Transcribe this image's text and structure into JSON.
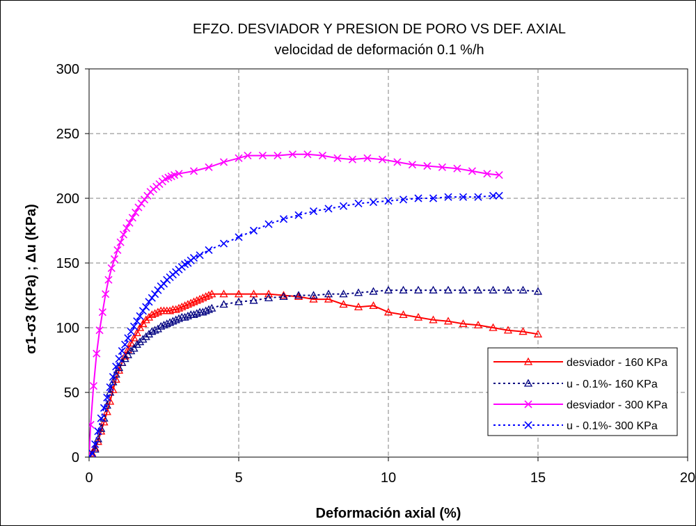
{
  "chart_data": {
    "type": "line",
    "title": "EFZO. DESVIADOR Y PRESION DE PORO VS DEF. AXIAL",
    "subtitle": "velocidad de deformación 0.1 %/h",
    "xlabel": "Deformación axial (%)",
    "ylabel": "σ1-σ3 (KPa) ; Δu (KPa)",
    "xlim": [
      0,
      20
    ],
    "ylim": [
      0,
      300
    ],
    "xticks": [
      0,
      5,
      10,
      15,
      20
    ],
    "yticks": [
      0,
      50,
      100,
      150,
      200,
      250,
      300
    ],
    "grid": true,
    "legend_position": "bottom-right",
    "series": [
      {
        "name": "desviador - 160 KPa",
        "color": "#ff0000",
        "marker": "triangle",
        "line": "solid",
        "points": [
          [
            0,
            0
          ],
          [
            0.1,
            3
          ],
          [
            0.2,
            7
          ],
          [
            0.3,
            12
          ],
          [
            0.4,
            20
          ],
          [
            0.5,
            27
          ],
          [
            0.6,
            35
          ],
          [
            0.7,
            43
          ],
          [
            0.8,
            52
          ],
          [
            0.9,
            60
          ],
          [
            1.0,
            67
          ],
          [
            1.1,
            73
          ],
          [
            1.2,
            78
          ],
          [
            1.3,
            83
          ],
          [
            1.4,
            88
          ],
          [
            1.5,
            92
          ],
          [
            1.6,
            96
          ],
          [
            1.7,
            100
          ],
          [
            1.8,
            103
          ],
          [
            1.9,
            106
          ],
          [
            2.0,
            108
          ],
          [
            2.1,
            110
          ],
          [
            2.2,
            111
          ],
          [
            2.3,
            112
          ],
          [
            2.4,
            113
          ],
          [
            2.5,
            113
          ],
          [
            2.6,
            113
          ],
          [
            2.7,
            113
          ],
          [
            2.8,
            114
          ],
          [
            2.9,
            114
          ],
          [
            3.0,
            115
          ],
          [
            3.1,
            116
          ],
          [
            3.2,
            117
          ],
          [
            3.3,
            118
          ],
          [
            3.4,
            119
          ],
          [
            3.5,
            120
          ],
          [
            3.6,
            121
          ],
          [
            3.7,
            122
          ],
          [
            3.8,
            123
          ],
          [
            3.9,
            124
          ],
          [
            4.0,
            125
          ],
          [
            4.1,
            126
          ],
          [
            4.5,
            126
          ],
          [
            5.0,
            126
          ],
          [
            5.5,
            126
          ],
          [
            6.0,
            126
          ],
          [
            6.5,
            125
          ],
          [
            7.0,
            124
          ],
          [
            7.5,
            122
          ],
          [
            8.0,
            122
          ],
          [
            8.5,
            118
          ],
          [
            9.0,
            116
          ],
          [
            9.5,
            117
          ],
          [
            10.0,
            112
          ],
          [
            10.5,
            110
          ],
          [
            11.0,
            108
          ],
          [
            11.5,
            106
          ],
          [
            12.0,
            105
          ],
          [
            12.5,
            103
          ],
          [
            13.0,
            102
          ],
          [
            13.5,
            100
          ],
          [
            14.0,
            98
          ],
          [
            14.5,
            97
          ],
          [
            15.0,
            95
          ]
        ]
      },
      {
        "name": "u - 0.1%- 160 KPa",
        "color": "#000080",
        "marker": "triangle-open",
        "line": "dotted",
        "points": [
          [
            0,
            0
          ],
          [
            0.1,
            2
          ],
          [
            0.2,
            6
          ],
          [
            0.3,
            14
          ],
          [
            0.4,
            22
          ],
          [
            0.5,
            30
          ],
          [
            0.6,
            40
          ],
          [
            0.7,
            50
          ],
          [
            0.8,
            58
          ],
          [
            0.9,
            64
          ],
          [
            1.0,
            69
          ],
          [
            1.1,
            73
          ],
          [
            1.2,
            76
          ],
          [
            1.3,
            79
          ],
          [
            1.4,
            82
          ],
          [
            1.5,
            84
          ],
          [
            1.6,
            87
          ],
          [
            1.7,
            89
          ],
          [
            1.8,
            91
          ],
          [
            1.9,
            93
          ],
          [
            2.0,
            95
          ],
          [
            2.1,
            97
          ],
          [
            2.2,
            98
          ],
          [
            2.3,
            99
          ],
          [
            2.4,
            101
          ],
          [
            2.5,
            102
          ],
          [
            2.6,
            103
          ],
          [
            2.7,
            104
          ],
          [
            2.8,
            105
          ],
          [
            2.9,
            106
          ],
          [
            3.0,
            107
          ],
          [
            3.1,
            108
          ],
          [
            3.2,
            108
          ],
          [
            3.3,
            109
          ],
          [
            3.4,
            110
          ],
          [
            3.5,
            110
          ],
          [
            3.6,
            111
          ],
          [
            3.7,
            112
          ],
          [
            3.8,
            112
          ],
          [
            3.9,
            113
          ],
          [
            4.0,
            114
          ],
          [
            4.1,
            115
          ],
          [
            4.5,
            118
          ],
          [
            5.0,
            120
          ],
          [
            5.5,
            121
          ],
          [
            6.0,
            123
          ],
          [
            6.5,
            124
          ],
          [
            7.0,
            125
          ],
          [
            7.5,
            125
          ],
          [
            8.0,
            126
          ],
          [
            8.5,
            126
          ],
          [
            9.0,
            127
          ],
          [
            9.5,
            128
          ],
          [
            10.0,
            129
          ],
          [
            10.5,
            129
          ],
          [
            11.0,
            129
          ],
          [
            11.5,
            129
          ],
          [
            12.0,
            129
          ],
          [
            12.5,
            129
          ],
          [
            13.0,
            129
          ],
          [
            13.5,
            129
          ],
          [
            14.0,
            129
          ],
          [
            14.5,
            129
          ],
          [
            15.0,
            128
          ]
        ]
      },
      {
        "name": "desviador - 300 KPa",
        "color": "#ff00ff",
        "marker": "x",
        "line": "solid",
        "points": [
          [
            0,
            0
          ],
          [
            0.05,
            25
          ],
          [
            0.15,
            55
          ],
          [
            0.25,
            80
          ],
          [
            0.35,
            98
          ],
          [
            0.45,
            112
          ],
          [
            0.55,
            126
          ],
          [
            0.65,
            137
          ],
          [
            0.75,
            146
          ],
          [
            0.85,
            153
          ],
          [
            0.95,
            160
          ],
          [
            1.05,
            166
          ],
          [
            1.15,
            172
          ],
          [
            1.25,
            177
          ],
          [
            1.35,
            181
          ],
          [
            1.45,
            185
          ],
          [
            1.55,
            189
          ],
          [
            1.65,
            193
          ],
          [
            1.75,
            196
          ],
          [
            1.85,
            199
          ],
          [
            1.95,
            202
          ],
          [
            2.05,
            205
          ],
          [
            2.15,
            207
          ],
          [
            2.25,
            209
          ],
          [
            2.35,
            211
          ],
          [
            2.45,
            213
          ],
          [
            2.55,
            215
          ],
          [
            2.65,
            216
          ],
          [
            2.75,
            217
          ],
          [
            2.85,
            218
          ],
          [
            3.0,
            219
          ],
          [
            3.5,
            221
          ],
          [
            4.0,
            224
          ],
          [
            4.5,
            228
          ],
          [
            5.0,
            231
          ],
          [
            5.3,
            233
          ],
          [
            5.8,
            233
          ],
          [
            6.3,
            233
          ],
          [
            6.8,
            234
          ],
          [
            7.3,
            234
          ],
          [
            7.8,
            233
          ],
          [
            8.3,
            231
          ],
          [
            8.8,
            230
          ],
          [
            9.3,
            231
          ],
          [
            9.8,
            230
          ],
          [
            10.3,
            228
          ],
          [
            10.8,
            226
          ],
          [
            11.3,
            225
          ],
          [
            11.8,
            224
          ],
          [
            12.3,
            223
          ],
          [
            12.8,
            221
          ],
          [
            13.3,
            219
          ],
          [
            13.7,
            218
          ]
        ]
      },
      {
        "name": "u - 0.1%- 300 KPa",
        "color": "#0000ff",
        "marker": "x",
        "line": "dotted",
        "points": [
          [
            0,
            0
          ],
          [
            0.1,
            3
          ],
          [
            0.2,
            10
          ],
          [
            0.3,
            20
          ],
          [
            0.4,
            30
          ],
          [
            0.5,
            38
          ],
          [
            0.6,
            46
          ],
          [
            0.7,
            54
          ],
          [
            0.8,
            62
          ],
          [
            0.9,
            70
          ],
          [
            1.0,
            76
          ],
          [
            1.1,
            82
          ],
          [
            1.2,
            87
          ],
          [
            1.3,
            92
          ],
          [
            1.4,
            97
          ],
          [
            1.5,
            101
          ],
          [
            1.6,
            105
          ],
          [
            1.7,
            109
          ],
          [
            1.8,
            113
          ],
          [
            1.9,
            116
          ],
          [
            2.0,
            120
          ],
          [
            2.1,
            123
          ],
          [
            2.2,
            126
          ],
          [
            2.3,
            129
          ],
          [
            2.4,
            132
          ],
          [
            2.5,
            134
          ],
          [
            2.6,
            137
          ],
          [
            2.7,
            139
          ],
          [
            2.8,
            141
          ],
          [
            2.9,
            143
          ],
          [
            3.0,
            145
          ],
          [
            3.1,
            147
          ],
          [
            3.2,
            149
          ],
          [
            3.3,
            150
          ],
          [
            3.4,
            152
          ],
          [
            3.5,
            154
          ],
          [
            3.7,
            156
          ],
          [
            4.0,
            160
          ],
          [
            4.5,
            165
          ],
          [
            5.0,
            170
          ],
          [
            5.5,
            175
          ],
          [
            6.0,
            180
          ],
          [
            6.5,
            184
          ],
          [
            7.0,
            187
          ],
          [
            7.5,
            190
          ],
          [
            8.0,
            192
          ],
          [
            8.5,
            194
          ],
          [
            9.0,
            196
          ],
          [
            9.5,
            197
          ],
          [
            10.0,
            198
          ],
          [
            10.5,
            199
          ],
          [
            11.0,
            200
          ],
          [
            11.5,
            200
          ],
          [
            12.0,
            201
          ],
          [
            12.5,
            201
          ],
          [
            13.0,
            201
          ],
          [
            13.5,
            202
          ],
          [
            13.7,
            202
          ]
        ]
      }
    ]
  }
}
